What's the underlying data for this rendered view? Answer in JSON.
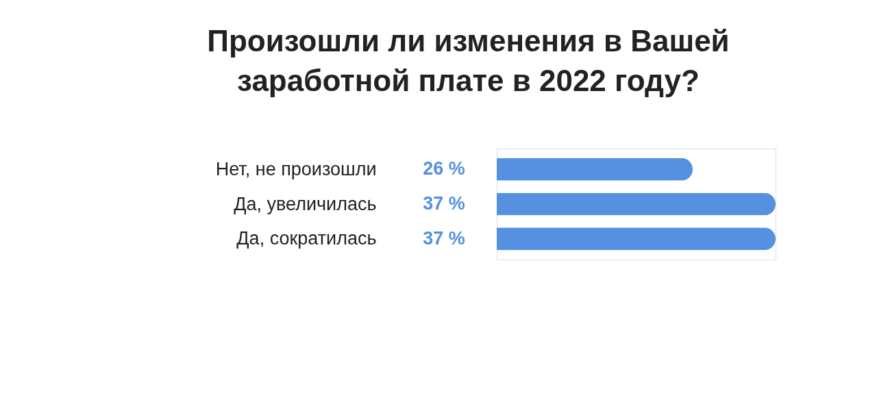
{
  "chart_data": {
    "type": "bar",
    "orientation": "horizontal",
    "title": "Произошли ли изменения в Вашей\nзаработной плате в 2022 году?",
    "categories": [
      "Нет, не произошли",
      "Да, увеличилась",
      "Да, сократилась"
    ],
    "values": [
      26,
      37,
      37
    ],
    "value_labels": [
      "26 %",
      "37 %",
      "37 %"
    ],
    "color": "#5591e0",
    "xlim": [
      0,
      37
    ],
    "tick_labels": "y"
  }
}
